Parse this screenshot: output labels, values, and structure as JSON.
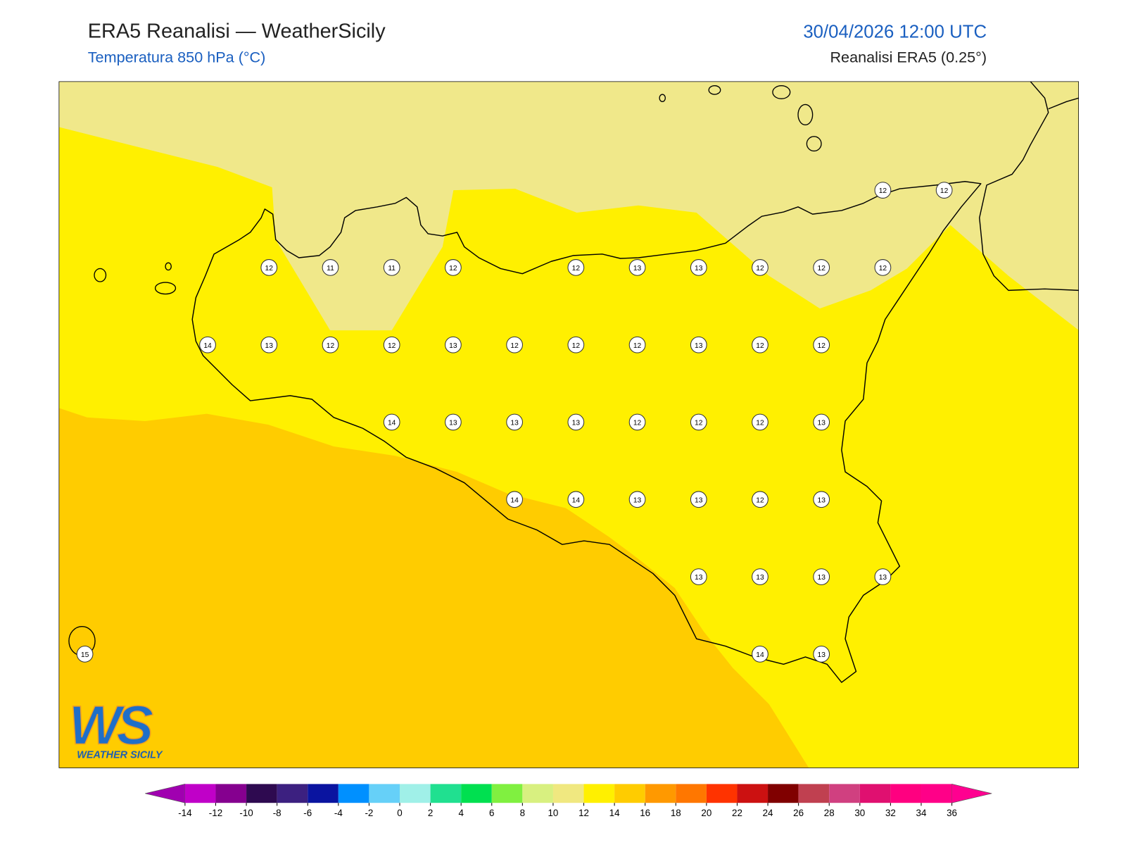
{
  "header": {
    "title": "ERA5 Reanalisi — WeatherSicily",
    "subtitle": "Temperatura 850 hPa (°C)",
    "datetime": "30/04/2026 12:00 UTC",
    "source": "Reanalisi ERA5 (0.25°)"
  },
  "map": {
    "stations": [
      [
        null,
        null,
        null,
        null,
        null,
        null,
        null,
        null,
        null,
        null,
        null,
        null,
        null,
        12,
        12
      ],
      [
        null,
        null,
        null,
        12,
        11,
        11,
        12,
        null,
        12,
        13,
        13,
        12,
        12,
        12,
        null
      ],
      [
        null,
        null,
        14,
        13,
        12,
        12,
        13,
        12,
        12,
        12,
        13,
        12,
        12,
        null,
        null
      ],
      [
        null,
        null,
        null,
        null,
        null,
        14,
        13,
        13,
        13,
        12,
        12,
        12,
        13,
        null,
        null
      ],
      [
        null,
        null,
        null,
        null,
        null,
        null,
        null,
        14,
        14,
        13,
        13,
        12,
        13,
        null,
        null
      ],
      [
        null,
        null,
        null,
        null,
        null,
        null,
        null,
        null,
        null,
        null,
        13,
        13,
        13,
        13,
        null
      ],
      [
        15,
        null,
        null,
        null,
        null,
        null,
        null,
        null,
        null,
        null,
        null,
        14,
        13,
        null,
        null
      ]
    ]
  },
  "logo": {
    "mark": "WS",
    "text": "WEATHER SICILY"
  },
  "colorbar": {
    "ticks": [
      -14,
      -12,
      -10,
      -8,
      -6,
      -4,
      -2,
      0,
      2,
      4,
      6,
      8,
      10,
      12,
      14,
      16,
      18,
      20,
      22,
      24,
      26,
      28,
      30,
      32,
      34,
      36
    ],
    "colors": [
      "#c000c8",
      "#85008f",
      "#2e0a50",
      "#3c2080",
      "#0a14a0",
      "#0090ff",
      "#66d0f8",
      "#a0f0e8",
      "#20e090",
      "#00e050",
      "#80f040",
      "#d8f080",
      "#f0e880",
      "#fff000",
      "#ffcc00",
      "#ff9900",
      "#ff7700",
      "#ff3300",
      "#cc1111",
      "#800000",
      "#c04050",
      "#d04080",
      "#e01070",
      "#ff0080",
      "#ff0088"
    ],
    "extend_colors": [
      "#a000b0",
      "#ff0090"
    ]
  }
}
